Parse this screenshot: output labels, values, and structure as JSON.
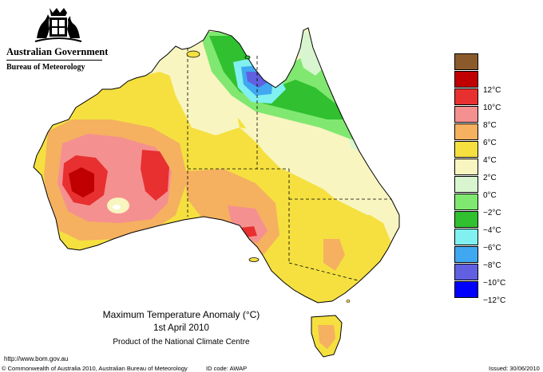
{
  "header": {
    "government": "Australian Government",
    "bureau": "Bureau of Meteorology"
  },
  "map": {
    "title": "Maximum Temperature Anomaly (°C)",
    "date": "1st April 2010",
    "product": "Product of the National Climate Centre"
  },
  "legend": [
    {
      "label": "",
      "color": "#8b5a2b"
    },
    {
      "label": "12°C",
      "color": "#c00000"
    },
    {
      "label": "10°C",
      "color": "#e83030"
    },
    {
      "label": "8°C",
      "color": "#f59090"
    },
    {
      "label": "6°C",
      "color": "#f5b060"
    },
    {
      "label": "4°C",
      "color": "#f5e040"
    },
    {
      "label": "2°C",
      "color": "#f8f5c0"
    },
    {
      "label": "0°C",
      "color": "#d8f5d0"
    },
    {
      "label": "−2°C",
      "color": "#80e870"
    },
    {
      "label": "−4°C",
      "color": "#30c030"
    },
    {
      "label": "−6°C",
      "color": "#80f0f0"
    },
    {
      "label": "−8°C",
      "color": "#40a8f0"
    },
    {
      "label": "−10°C",
      "color": "#6060e0"
    },
    {
      "label": "−12°C",
      "color": "#0000ff"
    }
  ],
  "footer": {
    "url": "http://www.bom.gov.au",
    "copyright": "© Commonwealth of Australia 2010, Australian Bureau of Meteorology",
    "id_code": "ID code: AWAP",
    "issued": "Issued: 30/06/2010"
  }
}
